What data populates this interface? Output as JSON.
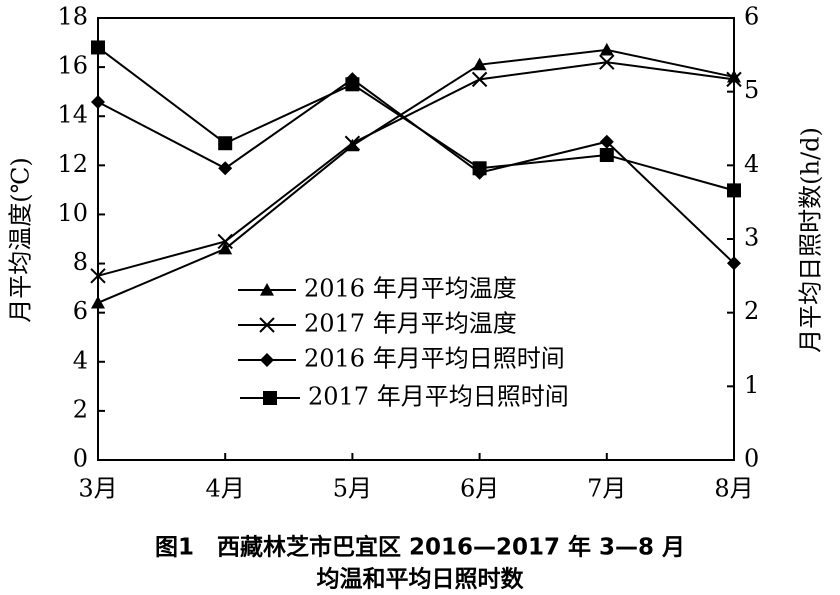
{
  "chart_data": {
    "type": "line",
    "caption": [
      "图1　西藏林芝市巴宜区 2016—2017 年 3—8 月",
      "均温和平均日照时数"
    ],
    "ylabel": "月平均温度(℃)",
    "y2label": "月平均日照时数(h/d)",
    "categories": [
      "3月",
      "4月",
      "5月",
      "6月",
      "7月",
      "8月"
    ],
    "series": [
      {
        "name": "2016 年月平均温度",
        "color": "#000000",
        "marker": "triangle",
        "values": [
          6.4,
          8.6,
          12.8,
          16.1,
          16.7,
          15.6
        ]
      },
      {
        "name": "2017 年月平均温度",
        "color": "#000000",
        "marker": "cross",
        "values": [
          7.5,
          8.9,
          12.9,
          15.5,
          16.2,
          15.5
        ]
      },
      {
        "name": "2016 年月平均日照时间",
        "color": "#000000",
        "marker": "diamond",
        "axis": "y2",
        "values": [
          4.86,
          3.96,
          5.17,
          3.9,
          4.32,
          2.67
        ]
      },
      {
        "name": "2017 年月平均日照时间",
        "color": "#000000",
        "marker": "square",
        "axis": "y2",
        "values": [
          5.6,
          4.3,
          5.1,
          3.96,
          4.14,
          3.66
        ]
      }
    ],
    "ylim": [
      0,
      18
    ],
    "yticks": [
      0,
      2,
      4,
      6,
      8,
      10,
      12,
      14,
      16,
      18
    ],
    "y2lim": [
      0,
      6
    ],
    "y2ticks": [
      0,
      1,
      2,
      3,
      4,
      5,
      6
    ],
    "grid": false
  }
}
